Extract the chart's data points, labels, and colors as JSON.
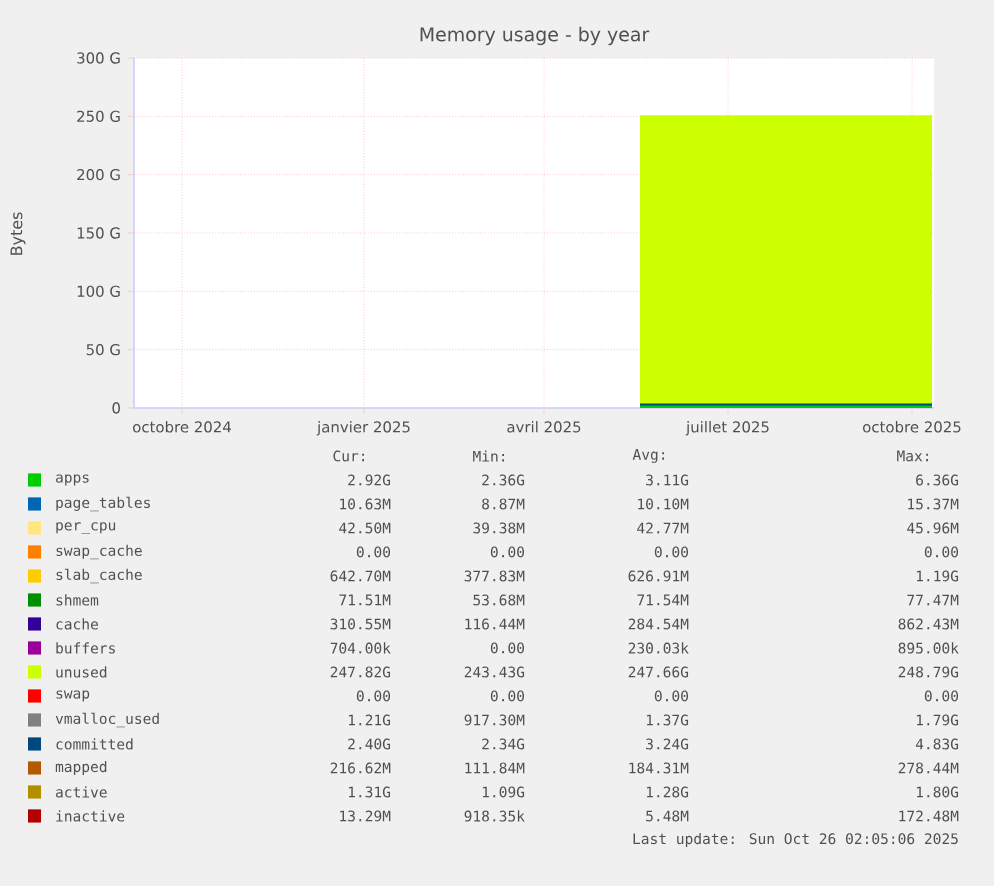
{
  "chart_data": {
    "type": "area",
    "title": "Memory usage - by year",
    "ylabel": "Bytes",
    "stacked": true,
    "grid": true,
    "legend": "bottom",
    "xlim": [
      "2024-09-22",
      "2025-10-27"
    ],
    "xticks": [
      {
        "value": "2024-10-16",
        "label": "octobre 2024"
      },
      {
        "value": "2025-01-15",
        "label": "janvier 2025"
      },
      {
        "value": "2025-04-15",
        "label": "avril 2025"
      },
      {
        "value": "2025-07-16",
        "label": "juillet 2025"
      },
      {
        "value": "2025-10-16",
        "label": "octobre 2025"
      }
    ],
    "ylim": [
      0,
      300
    ],
    "yticks": [
      0,
      {
        "value": 50,
        "label": "50 G"
      },
      {
        "value": 100,
        "label": "100 G"
      },
      {
        "value": 150,
        "label": "150 G"
      },
      {
        "value": 200,
        "label": "200 G"
      },
      {
        "value": 250,
        "label": "250 G"
      },
      {
        "value": 300,
        "label": "300 G"
      }
    ],
    "x": [
      "2025-06-02",
      "2025-07-01",
      "2025-08-01",
      "2025-09-01",
      "2025-10-01",
      "2025-10-26"
    ],
    "series": [
      {
        "name": "apps",
        "color": "#00cc00",
        "values": [
          3,
          3,
          3,
          3,
          3,
          3
        ]
      },
      {
        "name": "page_tables",
        "color": "#0066b3",
        "values": [
          null,
          null,
          null,
          null,
          null,
          null
        ]
      },
      {
        "name": "per_cpu",
        "color": "#ffe680",
        "values": [
          null,
          null,
          null,
          null,
          null,
          null
        ]
      },
      {
        "name": "swap_cache",
        "color": "#ff8000",
        "values": [
          null,
          null,
          null,
          null,
          null,
          null
        ]
      },
      {
        "name": "slab_cache",
        "color": "#ffcc00",
        "values": [
          null,
          null,
          null,
          null,
          null,
          null
        ]
      },
      {
        "name": "shmem",
        "color": "#008f00",
        "values": [
          null,
          null,
          null,
          null,
          null,
          null
        ]
      },
      {
        "name": "cache",
        "color": "#330099",
        "values": [
          null,
          null,
          null,
          null,
          null,
          null
        ]
      },
      {
        "name": "buffers",
        "color": "#990099",
        "values": [
          null,
          null,
          null,
          null,
          null,
          null
        ]
      },
      {
        "name": "unused",
        "color": "#ccff00",
        "values": [
          248,
          248,
          248,
          248,
          248,
          248
        ]
      },
      {
        "name": "swap",
        "color": "#ff0000",
        "values": [
          null,
          null,
          null,
          null,
          null,
          null
        ]
      },
      {
        "name": "vmalloc_used",
        "color": "#808080",
        "type": "line",
        "values": [
          null,
          null,
          null,
          null,
          null,
          null
        ]
      },
      {
        "name": "committed",
        "color": "#00487d",
        "type": "line",
        "values": [
          3,
          3,
          3,
          3,
          3,
          3
        ]
      },
      {
        "name": "mapped",
        "color": "#b35a00",
        "type": "line",
        "values": [
          null,
          null,
          null,
          null,
          null,
          null
        ]
      },
      {
        "name": "active",
        "color": "#b38f00",
        "type": "line",
        "values": [
          null,
          null,
          null,
          null,
          null,
          null
        ]
      },
      {
        "name": "inactive",
        "color": "#b30000",
        "type": "line",
        "values": [
          null,
          null,
          null,
          null,
          null,
          null
        ]
      }
    ],
    "annotations": [
      "Cur:",
      "Min:",
      "Avg:",
      "Max:",
      "2.92G",
      "2.36G",
      "3.11G",
      "6.36G",
      "10.63M",
      "8.87M",
      "10.10M",
      "15.37M",
      "42.50M",
      "39.38M",
      "42.77M",
      "45.96M",
      "0.00",
      "0.00",
      "0.00",
      "0.00",
      "642.70M",
      "377.83M",
      "626.91M",
      "1.19G",
      "71.51M",
      "53.68M",
      "71.54M",
      "77.47M",
      "310.55M",
      "116.44M",
      "284.54M",
      "862.43M",
      "704.00k",
      "0.00",
      "230.03k",
      "895.00k",
      "247.82G",
      "243.43G",
      "247.66G",
      "248.79G",
      "0.00",
      "0.00",
      "0.00",
      "0.00",
      "1.21G",
      "917.30M",
      "1.37G",
      "1.79G",
      "2.40G",
      "2.34G",
      "3.24G",
      "4.83G",
      "216.62M",
      "111.84M",
      "184.31M",
      "278.44M",
      "1.31G",
      "1.09G",
      "1.28G",
      "1.80G",
      "13.29M",
      "918.35k",
      "5.48M",
      "172.48M",
      "Last update: Sun Oct 26 02:05:06 2025"
    ]
  }
}
